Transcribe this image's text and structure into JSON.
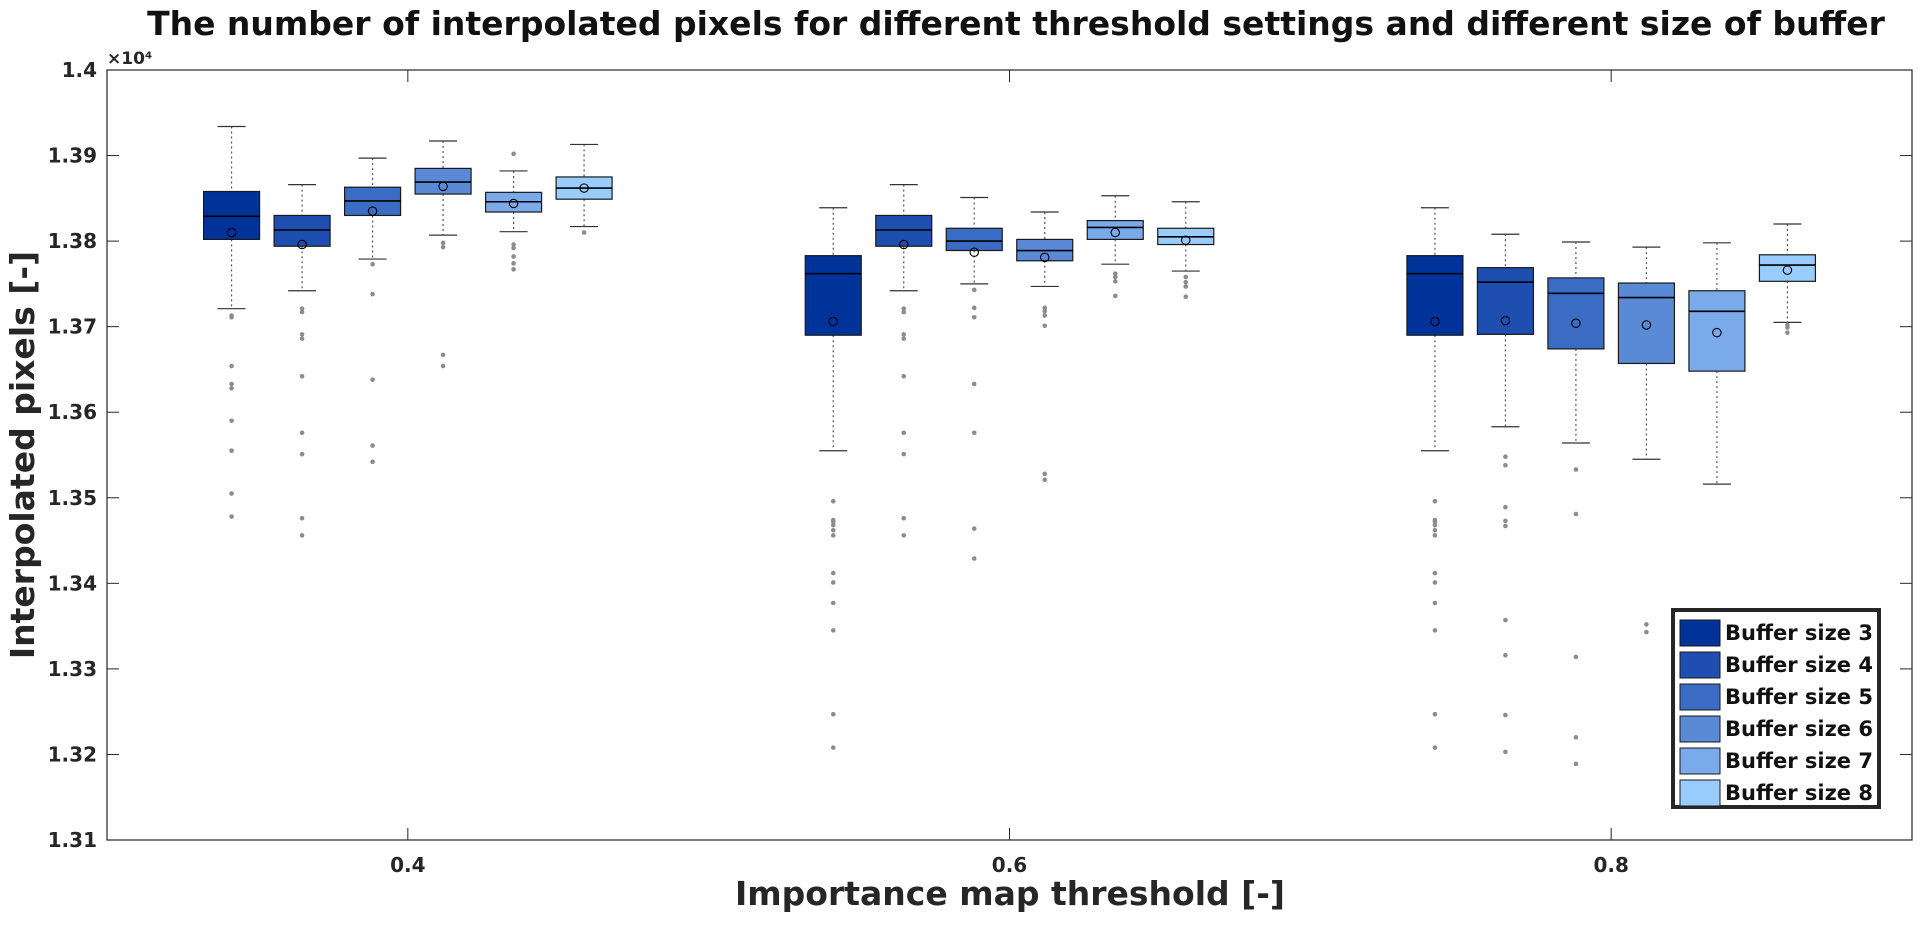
{
  "chart_data": {
    "type": "box",
    "title": "The number of interpolated pixels for different threshold settings and different size of buffer",
    "xlabel": "Importance map threshold [-]",
    "ylabel": "Interpolated pixels [-]",
    "y_exponent_label": "×10⁴",
    "y_scale_factor": 10000,
    "ylim": [
      1.31,
      1.4
    ],
    "xlim": [
      0.3,
      0.9
    ],
    "yticks": [
      "1.31",
      "1.32",
      "1.33",
      "1.34",
      "1.35",
      "1.36",
      "1.37",
      "1.38",
      "1.39",
      "1.4"
    ],
    "xticks": [
      "0.4",
      "0.6",
      "0.8"
    ],
    "legend_position": "bottom-right",
    "colors": [
      "#00339a",
      "#1e4fb0",
      "#3a6cc4",
      "#5a8ad6",
      "#7aaaea",
      "#99ccff"
    ],
    "series": [
      {
        "name": "Buffer size 3",
        "boxes": [
          {
            "x": 0.4,
            "whisker_low": 1.3721,
            "q1": 1.3802,
            "median": 1.3829,
            "q3": 1.3858,
            "whisker_high": 1.3934,
            "mean": 1.381,
            "outliers": [
              1.3478,
              1.3505,
              1.3555,
              1.359,
              1.3628,
              1.3633,
              1.3654,
              1.3711,
              1.3713
            ]
          },
          {
            "x": 0.6,
            "whisker_low": 1.3555,
            "q1": 1.369,
            "median": 1.3762,
            "q3": 1.3783,
            "whisker_high": 1.3839,
            "mean": 1.3706,
            "outliers": [
              1.3208,
              1.3247,
              1.3345,
              1.3377,
              1.3401,
              1.3412,
              1.3456,
              1.3462,
              1.3468,
              1.3472,
              1.3474,
              1.3496
            ]
          },
          {
            "x": 0.8,
            "whisker_low": 1.3555,
            "q1": 1.369,
            "median": 1.3762,
            "q3": 1.3783,
            "whisker_high": 1.3839,
            "mean": 1.3706,
            "outliers": [
              1.3208,
              1.3247,
              1.3345,
              1.3377,
              1.3401,
              1.3412,
              1.3456,
              1.3462,
              1.3468,
              1.3472,
              1.3474,
              1.3496
            ]
          }
        ]
      },
      {
        "name": "Buffer size 4",
        "boxes": [
          {
            "x": 0.4,
            "whisker_low": 1.3742,
            "q1": 1.3794,
            "median": 1.3813,
            "q3": 1.383,
            "whisker_high": 1.3866,
            "mean": 1.3796,
            "outliers": [
              1.3456,
              1.3476,
              1.3551,
              1.3576,
              1.3642,
              1.3686,
              1.3691,
              1.3717,
              1.3721
            ]
          },
          {
            "x": 0.6,
            "whisker_low": 1.3742,
            "q1": 1.3794,
            "median": 1.3813,
            "q3": 1.383,
            "whisker_high": 1.3866,
            "mean": 1.3796,
            "outliers": [
              1.3456,
              1.3476,
              1.3551,
              1.3576,
              1.3642,
              1.3686,
              1.3691,
              1.3717,
              1.3721
            ]
          },
          {
            "x": 0.8,
            "whisker_low": 1.3583,
            "q1": 1.3691,
            "median": 1.3752,
            "q3": 1.3769,
            "whisker_high": 1.3808,
            "mean": 1.3707,
            "outliers": [
              1.3203,
              1.3246,
              1.3316,
              1.3357,
              1.3467,
              1.3473,
              1.3489,
              1.3538,
              1.3548
            ]
          }
        ]
      },
      {
        "name": "Buffer size 5",
        "boxes": [
          {
            "x": 0.4,
            "whisker_low": 1.3779,
            "q1": 1.383,
            "median": 1.3847,
            "q3": 1.3863,
            "whisker_high": 1.3897,
            "mean": 1.3835,
            "outliers": [
              1.3542,
              1.3561,
              1.3638,
              1.3738,
              1.3773
            ]
          },
          {
            "x": 0.6,
            "whisker_low": 1.375,
            "q1": 1.3789,
            "median": 1.38,
            "q3": 1.3815,
            "whisker_high": 1.3851,
            "mean": 1.3787,
            "outliers": [
              1.3429,
              1.3464,
              1.3576,
              1.3633,
              1.3711,
              1.3722,
              1.3743
            ]
          },
          {
            "x": 0.8,
            "whisker_low": 1.3564,
            "q1": 1.3674,
            "median": 1.3739,
            "q3": 1.3757,
            "whisker_high": 1.3799,
            "mean": 1.3704,
            "outliers": [
              1.3189,
              1.322,
              1.3314,
              1.3481,
              1.3533
            ]
          }
        ]
      },
      {
        "name": "Buffer size 6",
        "boxes": [
          {
            "x": 0.4,
            "whisker_low": 1.3807,
            "q1": 1.3855,
            "median": 1.3869,
            "q3": 1.3885,
            "whisker_high": 1.3917,
            "mean": 1.3864,
            "outliers": [
              1.3654,
              1.3667,
              1.3793,
              1.3798
            ]
          },
          {
            "x": 0.6,
            "whisker_low": 1.3747,
            "q1": 1.3777,
            "median": 1.3789,
            "q3": 1.3802,
            "whisker_high": 1.3834,
            "mean": 1.3781,
            "outliers": [
              1.3521,
              1.3528,
              1.3701,
              1.3713,
              1.3718,
              1.3722
            ]
          },
          {
            "x": 0.8,
            "whisker_low": 1.3545,
            "q1": 1.3657,
            "median": 1.3734,
            "q3": 1.3751,
            "whisker_high": 1.3793,
            "mean": 1.3702,
            "outliers": [
              1.3343,
              1.3352
            ]
          }
        ]
      },
      {
        "name": "Buffer size 7",
        "boxes": [
          {
            "x": 0.4,
            "whisker_low": 1.3811,
            "q1": 1.3834,
            "median": 1.3846,
            "q3": 1.3857,
            "whisker_high": 1.3882,
            "mean": 1.3844,
            "outliers": [
              1.3767,
              1.3774,
              1.3782,
              1.3792,
              1.3796,
              1.3902
            ]
          },
          {
            "x": 0.6,
            "whisker_low": 1.3773,
            "q1": 1.3802,
            "median": 1.3816,
            "q3": 1.3824,
            "whisker_high": 1.3853,
            "mean": 1.381,
            "outliers": [
              1.3736,
              1.3753,
              1.3758,
              1.3762
            ]
          },
          {
            "x": 0.8,
            "whisker_low": 1.3516,
            "q1": 1.3648,
            "median": 1.3718,
            "q3": 1.3742,
            "whisker_high": 1.3798,
            "mean": 1.3693,
            "outliers": []
          }
        ]
      },
      {
        "name": "Buffer size 8",
        "boxes": [
          {
            "x": 0.4,
            "whisker_low": 1.3817,
            "q1": 1.3849,
            "median": 1.3862,
            "q3": 1.3875,
            "whisker_high": 1.3913,
            "mean": 1.3862,
            "outliers": [
              1.381
            ]
          },
          {
            "x": 0.6,
            "whisker_low": 1.3765,
            "q1": 1.3796,
            "median": 1.3805,
            "q3": 1.3815,
            "whisker_high": 1.3846,
            "mean": 1.3801,
            "outliers": [
              1.3735,
              1.3747,
              1.3752,
              1.3758
            ]
          },
          {
            "x": 0.8,
            "whisker_low": 1.3705,
            "q1": 1.3753,
            "median": 1.3772,
            "q3": 1.3784,
            "whisker_high": 1.382,
            "mean": 1.3766,
            "outliers": [
              1.3693,
              1.3699,
              1.3702
            ]
          }
        ]
      }
    ]
  }
}
